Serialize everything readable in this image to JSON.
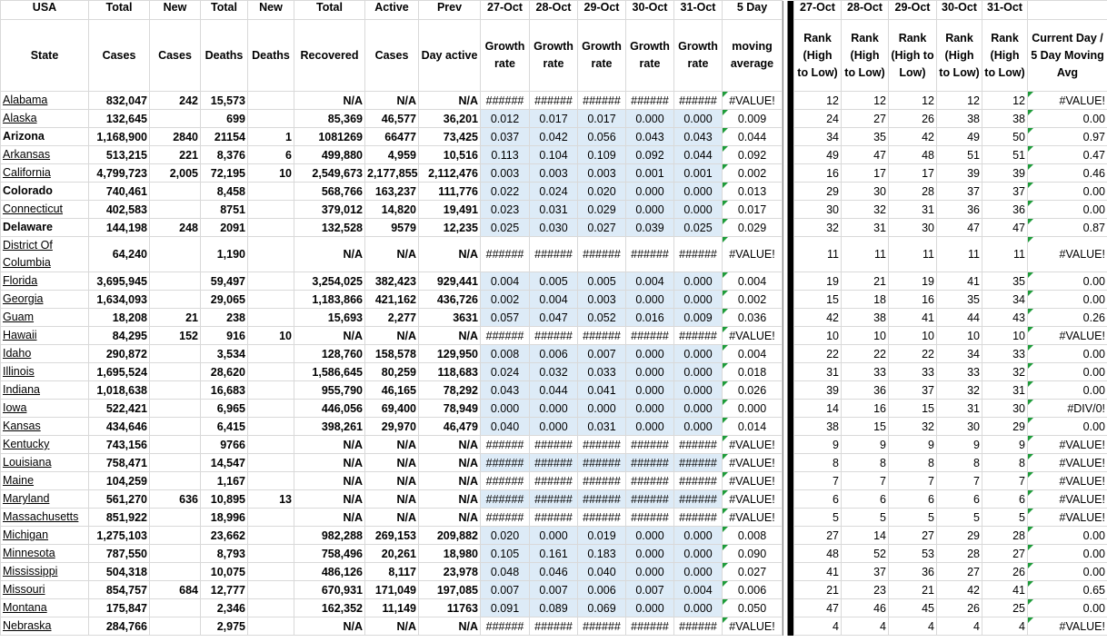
{
  "headers": {
    "row1": [
      "USA",
      "Total",
      "New",
      "Total",
      "New",
      "Total",
      "Active",
      "Prev",
      "27-Oct",
      "28-Oct",
      "29-Oct",
      "30-Oct",
      "31-Oct",
      "5 Day",
      "27-Oct",
      "28-Oct",
      "29-Oct",
      "30-Oct",
      "31-Oct",
      null
    ],
    "row2": [
      "State",
      "Cases",
      "Cases",
      "Deaths",
      "Deaths",
      "Recovered",
      "Cases",
      "Day active",
      "Growth rate",
      "Growth rate",
      "Growth rate",
      "Growth rate",
      "Growth rate",
      "moving average",
      "Rank (High to Low)",
      "Rank (High to Low)",
      "Rank (High to Low)",
      "Rank (High to Low)",
      "Rank (High to Low)",
      "Current Day / 5 Day Moving Avg"
    ]
  },
  "table": {
    "rows": [
      [
        "Alabama",
        "832,047",
        "242",
        "15,573",
        null,
        "N/A",
        "N/A",
        "N/A",
        "######",
        "######",
        "######",
        "######",
        "######",
        "#VALUE!",
        "12",
        "12",
        "12",
        "12",
        "12",
        "#VALUE!"
      ],
      [
        "Alaska",
        "132,645",
        null,
        "699",
        null,
        "85,369",
        "46,577",
        "36,201",
        "0.012",
        "0.017",
        "0.017",
        "0.000",
        "0.000",
        "0.009",
        "24",
        "27",
        "26",
        "38",
        "38",
        "0.00"
      ],
      [
        "Arizona",
        "1,168,900",
        "2840",
        "21154",
        "1",
        "1081269",
        "66477",
        "73,425",
        "0.037",
        "0.042",
        "0.056",
        "0.043",
        "0.043",
        "0.044",
        "34",
        "35",
        "42",
        "49",
        "50",
        "0.97"
      ],
      [
        "Arkansas",
        "513,215",
        "221",
        "8,376",
        "6",
        "499,880",
        "4,959",
        "10,516",
        "0.113",
        "0.104",
        "0.109",
        "0.092",
        "0.044",
        "0.092",
        "49",
        "47",
        "48",
        "51",
        "51",
        "0.47"
      ],
      [
        "California",
        "4,799,723",
        "2,005",
        "72,195",
        "10",
        "2,549,673",
        "2,177,855",
        "2,112,476",
        "0.003",
        "0.003",
        "0.003",
        "0.001",
        "0.001",
        "0.002",
        "16",
        "17",
        "17",
        "39",
        "39",
        "0.46"
      ],
      [
        "Colorado",
        "740,461",
        null,
        "8,458",
        null,
        "568,766",
        "163,237",
        "111,776",
        "0.022",
        "0.024",
        "0.020",
        "0.000",
        "0.000",
        "0.013",
        "29",
        "30",
        "28",
        "37",
        "37",
        "0.00"
      ],
      [
        "Connecticut",
        "402,583",
        null,
        "8751",
        null,
        "379,012",
        "14,820",
        "19,491",
        "0.023",
        "0.031",
        "0.029",
        "0.000",
        "0.000",
        "0.017",
        "30",
        "32",
        "31",
        "36",
        "36",
        "0.00"
      ],
      [
        "Delaware",
        "144,198",
        "248",
        "2091",
        null,
        "132,528",
        "9579",
        "12,235",
        "0.025",
        "0.030",
        "0.027",
        "0.039",
        "0.025",
        "0.029",
        "32",
        "31",
        "30",
        "47",
        "47",
        "0.87"
      ],
      [
        "District Of Columbia",
        "64,240",
        null,
        "1,190",
        null,
        "N/A",
        "N/A",
        "N/A",
        "######",
        "######",
        "######",
        "######",
        "######",
        "#VALUE!",
        "11",
        "11",
        "11",
        "11",
        "11",
        "#VALUE!"
      ],
      [
        "Florida",
        "3,695,945",
        null,
        "59,497",
        null,
        "3,254,025",
        "382,423",
        "929,441",
        "0.004",
        "0.005",
        "0.005",
        "0.004",
        "0.000",
        "0.004",
        "19",
        "21",
        "19",
        "41",
        "35",
        "0.00"
      ],
      [
        "Georgia",
        "1,634,093",
        null,
        "29,065",
        null,
        "1,183,866",
        "421,162",
        "436,726",
        "0.002",
        "0.004",
        "0.003",
        "0.000",
        "0.000",
        "0.002",
        "15",
        "18",
        "16",
        "35",
        "34",
        "0.00"
      ],
      [
        "Guam",
        "18,208",
        "21",
        "238",
        null,
        "15,693",
        "2,277",
        "3631",
        "0.057",
        "0.047",
        "0.052",
        "0.016",
        "0.009",
        "0.036",
        "42",
        "38",
        "41",
        "44",
        "43",
        "0.26"
      ],
      [
        "Hawaii",
        "84,295",
        "152",
        "916",
        "10",
        "N/A",
        "N/A",
        "N/A",
        "######",
        "######",
        "######",
        "######",
        "######",
        "#VALUE!",
        "10",
        "10",
        "10",
        "10",
        "10",
        "#VALUE!"
      ],
      [
        "Idaho",
        "290,872",
        null,
        "3,534",
        null,
        "128,760",
        "158,578",
        "129,950",
        "0.008",
        "0.006",
        "0.007",
        "0.000",
        "0.000",
        "0.004",
        "22",
        "22",
        "22",
        "34",
        "33",
        "0.00"
      ],
      [
        "Illinois",
        "1,695,524",
        null,
        "28,620",
        null,
        "1,586,645",
        "80,259",
        "118,683",
        "0.024",
        "0.032",
        "0.033",
        "0.000",
        "0.000",
        "0.018",
        "31",
        "33",
        "33",
        "33",
        "32",
        "0.00"
      ],
      [
        "Indiana",
        "1,018,638",
        null,
        "16,683",
        null,
        "955,790",
        "46,165",
        "78,292",
        "0.043",
        "0.044",
        "0.041",
        "0.000",
        "0.000",
        "0.026",
        "39",
        "36",
        "37",
        "32",
        "31",
        "0.00"
      ],
      [
        "Iowa",
        "522,421",
        null,
        "6,965",
        null,
        "446,056",
        "69,400",
        "78,949",
        "0.000",
        "0.000",
        "0.000",
        "0.000",
        "0.000",
        "0.000",
        "14",
        "16",
        "15",
        "31",
        "30",
        "#DIV/0!"
      ],
      [
        "Kansas",
        "434,646",
        null,
        "6,415",
        null,
        "398,261",
        "29,970",
        "46,479",
        "0.040",
        "0.000",
        "0.031",
        "0.000",
        "0.000",
        "0.014",
        "38",
        "15",
        "32",
        "30",
        "29",
        "0.00"
      ],
      [
        "Kentucky",
        "743,156",
        null,
        "9766",
        null,
        "N/A",
        "N/A",
        "N/A",
        "######",
        "######",
        "######",
        "######",
        "######",
        "#VALUE!",
        "9",
        "9",
        "9",
        "9",
        "9",
        "#VALUE!"
      ],
      [
        "Louisiana",
        "758,471",
        null,
        "14,547",
        null,
        "N/A",
        "N/A",
        "N/A",
        "######",
        "######",
        "######",
        "######",
        "######",
        "#VALUE!",
        "8",
        "8",
        "8",
        "8",
        "8",
        "#VALUE!"
      ],
      [
        "Maine",
        "104,259",
        null,
        "1,167",
        null,
        "N/A",
        "N/A",
        "N/A",
        "######",
        "######",
        "######",
        "######",
        "######",
        "#VALUE!",
        "7",
        "7",
        "7",
        "7",
        "7",
        "#VALUE!"
      ],
      [
        "Maryland",
        "561,270",
        "636",
        "10,895",
        "13",
        "N/A",
        "N/A",
        "N/A",
        "######",
        "######",
        "######",
        "######",
        "######",
        "#VALUE!",
        "6",
        "6",
        "6",
        "6",
        "6",
        "#VALUE!"
      ],
      [
        "Massachusetts",
        "851,922",
        null,
        "18,996",
        null,
        "N/A",
        "N/A",
        "N/A",
        "######",
        "######",
        "######",
        "######",
        "######",
        "#VALUE!",
        "5",
        "5",
        "5",
        "5",
        "5",
        "#VALUE!"
      ],
      [
        "Michigan",
        "1,275,103",
        null,
        "23,662",
        null,
        "982,288",
        "269,153",
        "209,882",
        "0.020",
        "0.000",
        "0.019",
        "0.000",
        "0.000",
        "0.008",
        "27",
        "14",
        "27",
        "29",
        "28",
        "0.00"
      ],
      [
        "Minnesota",
        "787,550",
        null,
        "8,793",
        null,
        "758,496",
        "20,261",
        "18,980",
        "0.105",
        "0.161",
        "0.183",
        "0.000",
        "0.000",
        "0.090",
        "48",
        "52",
        "53",
        "28",
        "27",
        "0.00"
      ],
      [
        "Mississippi",
        "504,318",
        null,
        "10,075",
        null,
        "486,126",
        "8,117",
        "23,978",
        "0.048",
        "0.046",
        "0.040",
        "0.000",
        "0.000",
        "0.027",
        "41",
        "37",
        "36",
        "27",
        "26",
        "0.00"
      ],
      [
        "Missouri",
        "854,757",
        "684",
        "12,777",
        null,
        "670,931",
        "171,049",
        "197,085",
        "0.007",
        "0.007",
        "0.006",
        "0.007",
        "0.004",
        "0.006",
        "21",
        "23",
        "21",
        "42",
        "41",
        "0.65"
      ],
      [
        "Montana",
        "175,847",
        null,
        "2,346",
        null,
        "162,352",
        "11,149",
        "11763",
        "0.091",
        "0.089",
        "0.069",
        "0.000",
        "0.000",
        "0.050",
        "47",
        "46",
        "45",
        "26",
        "25",
        "0.00"
      ],
      [
        "Nebraska",
        "284,766",
        null,
        "2,975",
        null,
        "N/A",
        "N/A",
        "N/A",
        "######",
        "######",
        "######",
        "######",
        "######",
        "#VALUE!",
        "4",
        "4",
        "4",
        "4",
        "4",
        "#VALUE!"
      ]
    ]
  }
}
